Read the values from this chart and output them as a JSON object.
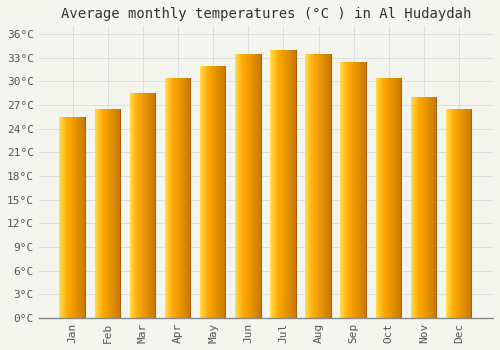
{
  "title": "Average monthly temperatures (°C ) in Al Ḥudaydah",
  "months": [
    "Jan",
    "Feb",
    "Mar",
    "Apr",
    "May",
    "Jun",
    "Jul",
    "Aug",
    "Sep",
    "Oct",
    "Nov",
    "Dec"
  ],
  "values": [
    25.5,
    26.5,
    28.5,
    30.5,
    32.0,
    33.5,
    34.0,
    33.5,
    32.5,
    30.5,
    28.0,
    26.5
  ],
  "bar_color_left": "#FFD966",
  "bar_color_mid": "#FFAA00",
  "bar_color_right": "#E08000",
  "background_color": "#F5F5F0",
  "plot_bg_color": "#F5F5F0",
  "grid_color": "#DDDDDD",
  "ylim": [
    0,
    37
  ],
  "yticks": [
    0,
    3,
    6,
    9,
    12,
    15,
    18,
    21,
    24,
    27,
    30,
    33,
    36
  ],
  "title_fontsize": 10,
  "tick_fontsize": 8,
  "bar_width": 0.75
}
